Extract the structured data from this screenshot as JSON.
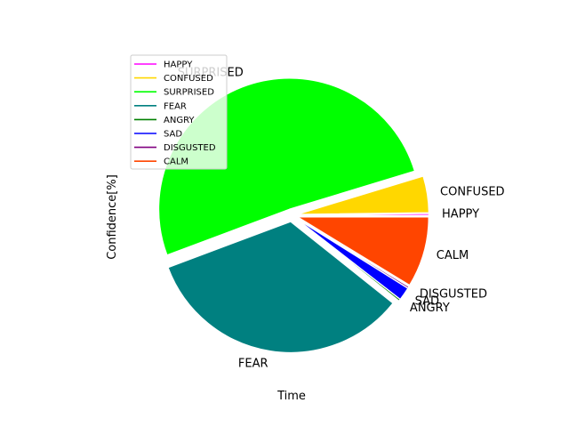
{
  "chart_data": {
    "type": "pie",
    "xlabel": "Time",
    "ylabel": "Confidence[%]",
    "legend_position": "top-left",
    "slices": [
      {
        "name": "HAPPY",
        "value": 0.2,
        "color": "#ff00ff",
        "exploded": true
      },
      {
        "name": "CONFUSED",
        "value": 4.5,
        "color": "#ffd700",
        "exploded": true
      },
      {
        "name": "SURPRISED",
        "value": 51.0,
        "color": "#00ff00",
        "exploded": true
      },
      {
        "name": "FEAR",
        "value": 33.6,
        "color": "#008080",
        "exploded": true
      },
      {
        "name": "ANGRY",
        "value": 0.2,
        "color": "#008000",
        "exploded": true
      },
      {
        "name": "SAD",
        "value": 1.6,
        "color": "#0000ff",
        "exploded": true
      },
      {
        "name": "DISGUSTED",
        "value": 0.2,
        "color": "#800080",
        "exploded": true
      },
      {
        "name": "CALM",
        "value": 8.7,
        "color": "#ff4500",
        "exploded": true
      }
    ],
    "legend": [
      "HAPPY",
      "CONFUSED",
      "SURPRISED",
      "FEAR",
      "ANGRY",
      "SAD",
      "DISGUSTED",
      "CALM"
    ]
  }
}
